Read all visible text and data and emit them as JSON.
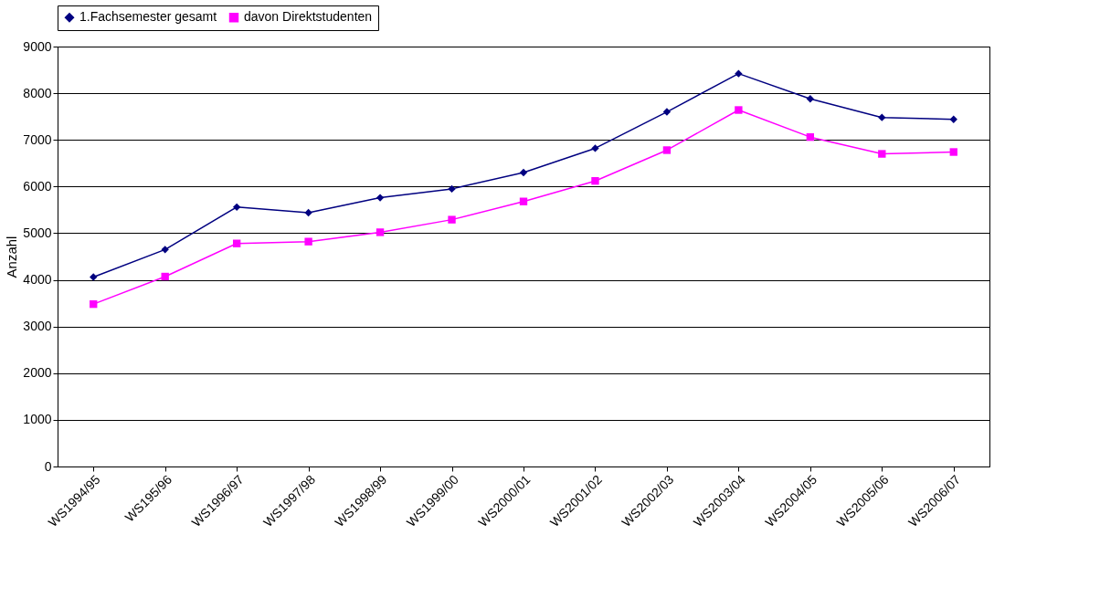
{
  "chart_data": {
    "type": "line",
    "ylabel": "Anzahl",
    "categories": [
      "WS1994/95",
      "WS195/96",
      "WS1996/97",
      "WS1997/98",
      "WS1998/99",
      "WS1999/00",
      "WS2000/01",
      "WS2001/02",
      "WS2002/03",
      "WS2003/04",
      "WS2004/05",
      "WS2005/06",
      "WS2006/07"
    ],
    "series": [
      {
        "name": "1.Fachsemester gesamt",
        "color": "#000080",
        "marker": "diamond",
        "values": [
          4060,
          4650,
          5560,
          5440,
          5760,
          5950,
          6300,
          6820,
          7600,
          8420,
          7880,
          7480,
          7440
        ]
      },
      {
        "name": "davon Direktstudenten",
        "color": "#ff00ff",
        "marker": "square",
        "values": [
          3480,
          4070,
          4780,
          4820,
          5020,
          5290,
          5680,
          6120,
          6780,
          7640,
          7060,
          6700,
          6740
        ]
      }
    ],
    "ylim": [
      0,
      9000
    ],
    "yticks": [
      0,
      1000,
      2000,
      3000,
      4000,
      5000,
      6000,
      7000,
      8000,
      9000
    ],
    "grid": "y",
    "legend": "top"
  }
}
